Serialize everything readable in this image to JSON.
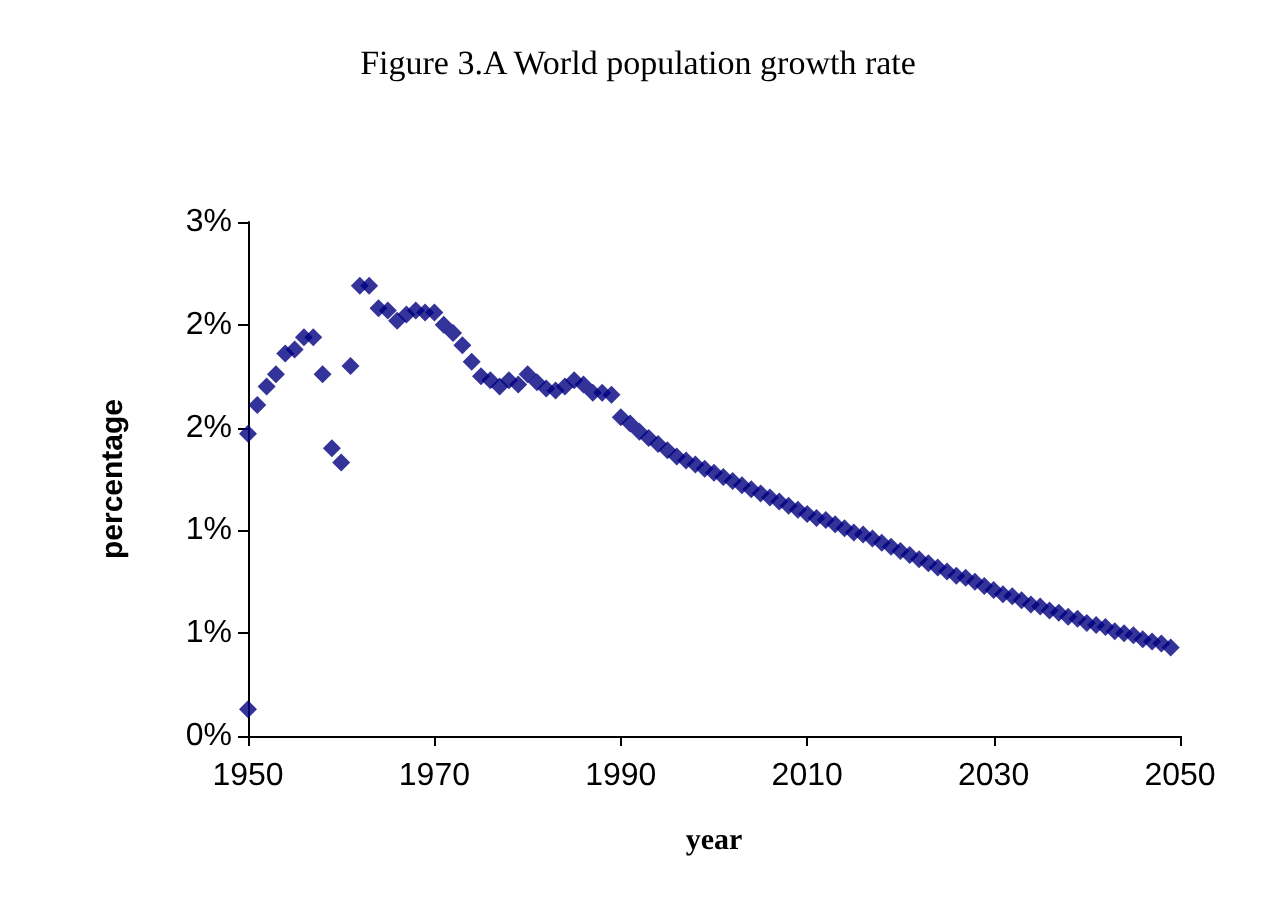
{
  "chart_data": {
    "type": "scatter",
    "title": "Figure 3.A World population growth rate",
    "xlabel": "year",
    "ylabel": "percentage",
    "x": [
      1950,
      1950,
      1951,
      1952,
      1953,
      1954,
      1955,
      1956,
      1957,
      1958,
      1959,
      1960,
      1961,
      1962,
      1963,
      1964,
      1965,
      1966,
      1967,
      1968,
      1969,
      1970,
      1971,
      1972,
      1973,
      1974,
      1975,
      1976,
      1977,
      1978,
      1979,
      1980,
      1981,
      1982,
      1983,
      1984,
      1985,
      1986,
      1987,
      1988,
      1989,
      1990,
      1991,
      1992,
      1993,
      1994,
      1995,
      1996,
      1997,
      1998,
      1999,
      2000,
      2001,
      2002,
      2003,
      2004,
      2005,
      2006,
      2007,
      2008,
      2009,
      2010,
      2011,
      2012,
      2013,
      2014,
      2015,
      2016,
      2017,
      2018,
      2019,
      2020,
      2021,
      2022,
      2023,
      2024,
      2025,
      2026,
      2027,
      2028,
      2029,
      2030,
      2031,
      2032,
      2033,
      2034,
      2035,
      2036,
      2037,
      2038,
      2039,
      2040,
      2041,
      2042,
      2043,
      2044,
      2045,
      2046,
      2047,
      2048,
      2049
    ],
    "values": [
      0.13,
      1.47,
      1.61,
      1.7,
      1.76,
      1.86,
      1.88,
      1.94,
      1.94,
      1.76,
      1.4,
      1.33,
      1.8,
      2.19,
      2.19,
      2.08,
      2.07,
      2.02,
      2.05,
      2.07,
      2.06,
      2.06,
      2.0,
      1.96,
      1.9,
      1.82,
      1.75,
      1.73,
      1.7,
      1.73,
      1.71,
      1.76,
      1.72,
      1.69,
      1.68,
      1.7,
      1.73,
      1.71,
      1.67,
      1.67,
      1.66,
      1.55,
      1.52,
      1.48,
      1.45,
      1.42,
      1.39,
      1.36,
      1.34,
      1.32,
      1.3,
      1.28,
      1.26,
      1.24,
      1.22,
      1.2,
      1.18,
      1.16,
      1.14,
      1.12,
      1.1,
      1.08,
      1.06,
      1.05,
      1.03,
      1.01,
      0.99,
      0.98,
      0.96,
      0.94,
      0.92,
      0.9,
      0.88,
      0.86,
      0.84,
      0.82,
      0.8,
      0.78,
      0.77,
      0.75,
      0.73,
      0.71,
      0.69,
      0.68,
      0.66,
      0.64,
      0.63,
      0.61,
      0.6,
      0.58,
      0.57,
      0.55,
      0.54,
      0.53,
      0.51,
      0.5,
      0.49,
      0.47,
      0.46,
      0.45,
      0.43
    ],
    "color": "#000080",
    "marker": "diamond",
    "grid": false,
    "xlim": [
      1950,
      2050
    ],
    "xticks": [
      1950,
      1970,
      1990,
      2010,
      2030,
      2050
    ],
    "ylim": [
      0,
      2.5
    ],
    "yticks": [
      {
        "value": 0,
        "label": "0%"
      },
      {
        "value": 0.5,
        "label": "1%"
      },
      {
        "value": 1,
        "label": "1%"
      },
      {
        "value": 1.5,
        "label": "2%"
      },
      {
        "value": 2,
        "label": "2%"
      },
      {
        "value": 2.5,
        "label": "3%"
      }
    ]
  }
}
